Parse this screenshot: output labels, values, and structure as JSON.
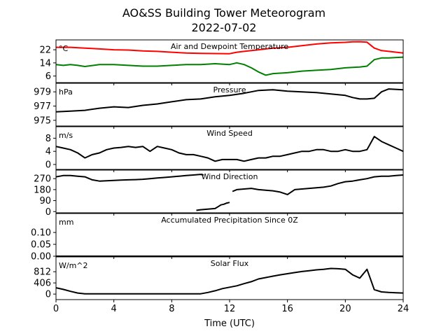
{
  "chart_data": {
    "type": "line",
    "title": "AO&SS Building Tower Meteorogram",
    "subtitle": "2022-07-02",
    "xlabel": "Time (UTC)",
    "xlim": [
      0,
      24
    ],
    "xticks": [
      "0",
      "4",
      "8",
      "12",
      "16",
      "20",
      "24"
    ],
    "grid": false,
    "panels": [
      {
        "title": "Air and Dewpoint Temperature",
        "unit": "°C",
        "ylim": [
          2,
          28
        ],
        "yticks": [
          "6",
          "14",
          "22"
        ],
        "series": [
          {
            "color": "#ff0000",
            "x": [
              0,
              1,
              2,
              3,
              4,
              5,
              6,
              7,
              8,
              9,
              10,
              11,
              12,
              12.5,
              13,
              14,
              15,
              16,
              17,
              18,
              19,
              20,
              20.5,
              21,
              21.5,
              22,
              22.5,
              23,
              24
            ],
            "y": [
              23.5,
              23.5,
              23,
              22.5,
              22,
              21.8,
              21.3,
              21,
              20.5,
              20,
              19.8,
              19.7,
              19.6,
              20.5,
              21,
              22,
              23,
              23.5,
              24.5,
              25.5,
              26.2,
              26.5,
              26.8,
              26.9,
              26.6,
              23,
              21.5,
              21,
              20
            ]
          },
          {
            "color": "#008000",
            "x": [
              0,
              0.5,
              1,
              1.5,
              2,
              3,
              4,
              5,
              6,
              7,
              8,
              9,
              10,
              11,
              12,
              12.5,
              13,
              13.5,
              14,
              14.5,
              15,
              16,
              17,
              18,
              19,
              20,
              21,
              21.5,
              22,
              22.5,
              23,
              24
            ],
            "y": [
              13,
              12.5,
              13,
              12.5,
              11.8,
              13,
              13,
              12.5,
              12,
              12,
              12.5,
              13,
              13,
              13.5,
              13,
              14,
              13,
              11,
              8.5,
              6.5,
              7.5,
              8,
              9,
              9.5,
              10,
              11,
              11.5,
              12,
              16,
              17,
              17,
              17.5
            ]
          }
        ]
      },
      {
        "title": "Pressure",
        "unit": "hPa",
        "ylim": [
          974.2,
          980.2
        ],
        "yticks": [
          "975",
          "977",
          "979"
        ],
        "series": [
          {
            "color": "#000000",
            "x": [
              0,
              1,
              2,
              3,
              4,
              5,
              6,
              7,
              8,
              9,
              10,
              11,
              12,
              13,
              14,
              15,
              16,
              17,
              18,
              19,
              20,
              20.5,
              21,
              21.5,
              22,
              22.5,
              23,
              24
            ],
            "y": [
              976.2,
              976.3,
              976.4,
              976.7,
              976.9,
              976.8,
              977.1,
              977.3,
              977.6,
              977.9,
              978.0,
              978.3,
              978.5,
              978.8,
              979.2,
              979.3,
              979.1,
              979.0,
              978.9,
              978.7,
              978.5,
              978.2,
              978.0,
              978.0,
              978.1,
              979.0,
              979.4,
              979.3
            ]
          }
        ]
      },
      {
        "title": "Wind Speed",
        "unit": "m/s",
        "ylim": [
          -1.5,
          11.5
        ],
        "yticks": [
          "0",
          "4",
          "8"
        ],
        "series": [
          {
            "color": "#000000",
            "x": [
              0,
              0.5,
              1,
              1.5,
              2,
              2.5,
              3,
              3.5,
              4,
              4.5,
              5,
              5.5,
              6,
              6.5,
              7,
              7.5,
              8,
              8.5,
              9,
              9.5,
              10,
              10.5,
              11,
              11.5,
              12,
              12.5,
              13,
              13.5,
              14,
              14.5,
              15,
              15.5,
              16,
              16.5,
              17,
              17.5,
              18,
              18.5,
              19,
              19.5,
              20,
              20.5,
              21,
              21.5,
              22,
              22.5,
              23,
              23.5,
              24
            ],
            "y": [
              5.5,
              5,
              4.5,
              3.5,
              2,
              3,
              3.5,
              4.5,
              5,
              5.2,
              5.5,
              5.2,
              5.5,
              4,
              5.5,
              5,
              4.5,
              3.5,
              3,
              3,
              2.5,
              2,
              1,
              1.5,
              1.5,
              1.5,
              1,
              1.5,
              2,
              2,
              2.5,
              2.5,
              3,
              3.5,
              4,
              4,
              4.5,
              4.5,
              4,
              4,
              4.5,
              4,
              4,
              4.5,
              8.5,
              7,
              6,
              5,
              4
            ]
          }
        ]
      },
      {
        "title": "Wind Direction",
        "unit": "",
        "ylim": [
          -10,
          340
        ],
        "yticks": [
          "0",
          "90",
          "180",
          "270"
        ],
        "series": [
          {
            "color": "#000000",
            "x": [
              0,
              0.5,
              1,
              1.5,
              2,
              2.5,
              3,
              3.5,
              4,
              4.5,
              5,
              5.5,
              6,
              6.5,
              7,
              7.5,
              8,
              8.5,
              9,
              9.5,
              10,
              10.2
            ],
            "y": [
              285,
              295,
              295,
              290,
              285,
              260,
              250,
              252,
              255,
              258,
              260,
              262,
              265,
              270,
              275,
              280,
              285,
              290,
              295,
              300,
              305,
              300
            ]
          },
          {
            "color": "#000000",
            "x": [
              9.7,
              10,
              10.5,
              11,
              11.2,
              11.4,
              11.6,
              11.8,
              12
            ],
            "y": [
              10,
              15,
              20,
              25,
              40,
              55,
              60,
              70,
              75
            ]
          },
          {
            "color": "#000000",
            "x": [
              12.2,
              12.5,
              13,
              13.5,
              14,
              14.5,
              15,
              15.5,
              16,
              16.5,
              17,
              17.5,
              18,
              18.5,
              19,
              19.5,
              20,
              20.5,
              21,
              21.5,
              22,
              22.5,
              23,
              23.5,
              24
            ],
            "y": [
              165,
              180,
              185,
              190,
              180,
              175,
              170,
              160,
              140,
              180,
              185,
              190,
              195,
              200,
              210,
              230,
              245,
              250,
              260,
              270,
              285,
              290,
              290,
              295,
              300
            ]
          }
        ]
      },
      {
        "title": "Accumulated Precipitation Since 0Z",
        "unit": "mm",
        "ylim": [
          0,
          0.18
        ],
        "yticks": [
          "0.00",
          "0.05",
          "0.10"
        ],
        "series": [
          {
            "color": "#000000",
            "x": [
              0,
              24
            ],
            "y": [
              0,
              0
            ]
          }
        ]
      },
      {
        "title": "Solar Flux",
        "unit": "W/m^2",
        "ylim": [
          -200,
          1350
        ],
        "yticks": [
          "0",
          "406",
          "812"
        ],
        "series": [
          {
            "color": "#000000",
            "x": [
              0,
              0.5,
              1,
              1.5,
              2,
              4,
              6,
              8,
              10,
              10.5,
              11,
              11.5,
              12,
              12.5,
              13,
              13.5,
              14,
              14.5,
              15,
              15.5,
              16,
              16.5,
              17,
              17.5,
              18,
              18.5,
              19,
              19.5,
              20,
              20.5,
              21,
              21.5,
              22,
              22.5,
              23,
              23.5,
              24
            ],
            "y": [
              230,
              170,
              100,
              40,
              10,
              10,
              10,
              10,
              10,
              60,
              120,
              200,
              250,
              300,
              380,
              450,
              550,
              600,
              650,
              700,
              740,
              780,
              820,
              850,
              880,
              900,
              930,
              920,
              900,
              700,
              580,
              900,
              160,
              80,
              60,
              50,
              40
            ]
          }
        ]
      }
    ]
  }
}
